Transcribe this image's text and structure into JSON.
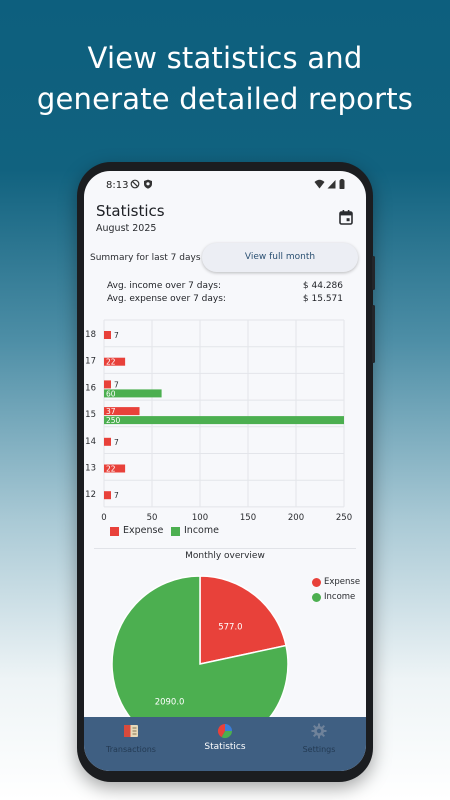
{
  "headline": {
    "line1": "View statistics and",
    "line2": "generate detailed reports"
  },
  "status_bar": {
    "time": "8:13",
    "icons": [
      "do-not-disturb-icon",
      "shield-icon",
      "wifi-icon",
      "signal-icon",
      "battery-icon"
    ]
  },
  "header": {
    "title": "Statistics",
    "subtitle": "August 2025",
    "calendar_icon": "calendar-icon"
  },
  "summary": {
    "label": "Summary for last 7 days",
    "button": "View full month"
  },
  "averages": {
    "income_label": "Avg. income over 7 days:",
    "income_value": "$ 44.286",
    "expense_label": "Avg. expense over 7 days:",
    "expense_value": "$ 15.571"
  },
  "colors": {
    "expense": "#e8413a",
    "income": "#4caf50",
    "nav_bg": "#3f5f82",
    "accent": "#2b5072"
  },
  "chart_data": [
    {
      "type": "bar",
      "orientation": "horizontal",
      "categories": [
        "18",
        "17",
        "16",
        "15",
        "14",
        "13",
        "12"
      ],
      "series": [
        {
          "name": "Expense",
          "values": [
            7,
            22,
            7,
            37,
            7,
            22,
            7
          ]
        },
        {
          "name": "Income",
          "values": [
            0,
            0,
            60,
            250,
            0,
            0,
            0
          ]
        }
      ],
      "xticks": [
        "0",
        "50",
        "100",
        "150",
        "200",
        "250"
      ],
      "xlim": [
        0,
        250
      ],
      "grid": true,
      "legend": "bottom"
    },
    {
      "type": "pie",
      "title": "Monthly overview",
      "labels": [
        "Expense",
        "Income"
      ],
      "values": [
        577.0,
        2090.0
      ],
      "value_labels": [
        "577.0",
        "2090.0"
      ],
      "legend": "top-right"
    }
  ],
  "nav": {
    "items": [
      {
        "label": "Transactions",
        "icon": "ledger-icon",
        "active": false
      },
      {
        "label": "Statistics",
        "icon": "pie-chart-icon",
        "active": true
      },
      {
        "label": "Settings",
        "icon": "gear-icon",
        "active": false
      }
    ]
  }
}
